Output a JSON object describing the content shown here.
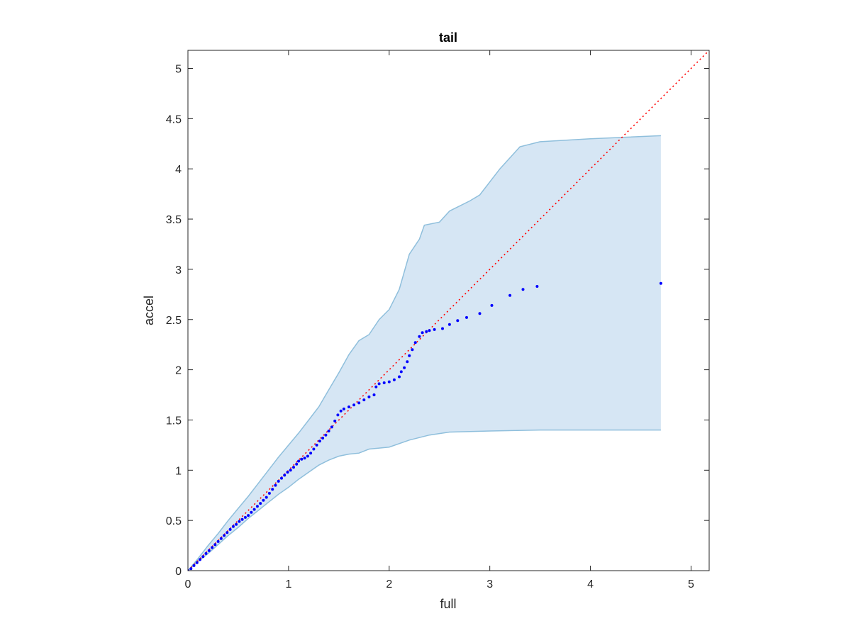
{
  "chart_data": {
    "type": "scatter",
    "title": "tail",
    "xlabel": "full",
    "ylabel": "accel",
    "xlim": [
      0,
      5.18
    ],
    "ylim": [
      0,
      5.18
    ],
    "xticks": [
      "0",
      "1",
      "2",
      "3",
      "4",
      "5"
    ],
    "yticks": [
      "0",
      "0.5",
      "1",
      "1.5",
      "2",
      "2.5",
      "3",
      "3.5",
      "4",
      "4.5",
      "5"
    ],
    "grid": false,
    "box": true,
    "reference_line": {
      "style": "dotted",
      "color": "#ff0000",
      "from": [
        0,
        0
      ],
      "to": [
        5.18,
        5.18
      ]
    },
    "band": {
      "fill_color": "#d6e6f4",
      "edge_color": "#8fbfdc",
      "upper": [
        [
          0,
          0
        ],
        [
          0.1,
          0.12
        ],
        [
          0.2,
          0.25
        ],
        [
          0.3,
          0.37
        ],
        [
          0.4,
          0.5
        ],
        [
          0.5,
          0.62
        ],
        [
          0.6,
          0.74
        ],
        [
          0.7,
          0.87
        ],
        [
          0.8,
          1.0
        ],
        [
          0.9,
          1.13
        ],
        [
          1.0,
          1.25
        ],
        [
          1.1,
          1.37
        ],
        [
          1.2,
          1.5
        ],
        [
          1.3,
          1.63
        ],
        [
          1.4,
          1.8
        ],
        [
          1.5,
          1.97
        ],
        [
          1.6,
          2.15
        ],
        [
          1.7,
          2.29
        ],
        [
          1.8,
          2.35
        ],
        [
          1.9,
          2.5
        ],
        [
          2.0,
          2.6
        ],
        [
          2.1,
          2.8
        ],
        [
          2.2,
          3.15
        ],
        [
          2.3,
          3.3
        ],
        [
          2.35,
          3.44
        ],
        [
          2.5,
          3.47
        ],
        [
          2.6,
          3.58
        ],
        [
          2.8,
          3.68
        ],
        [
          2.9,
          3.74
        ],
        [
          3.1,
          4.0
        ],
        [
          3.3,
          4.22
        ],
        [
          3.5,
          4.27
        ],
        [
          4.0,
          4.3
        ],
        [
          4.7,
          4.33
        ]
      ],
      "lower": [
        [
          0,
          0
        ],
        [
          0.1,
          0.09
        ],
        [
          0.2,
          0.17
        ],
        [
          0.3,
          0.26
        ],
        [
          0.4,
          0.35
        ],
        [
          0.5,
          0.43
        ],
        [
          0.6,
          0.52
        ],
        [
          0.7,
          0.6
        ],
        [
          0.8,
          0.68
        ],
        [
          0.9,
          0.76
        ],
        [
          1.0,
          0.83
        ],
        [
          1.1,
          0.91
        ],
        [
          1.2,
          0.98
        ],
        [
          1.3,
          1.05
        ],
        [
          1.4,
          1.1
        ],
        [
          1.5,
          1.14
        ],
        [
          1.6,
          1.16
        ],
        [
          1.7,
          1.17
        ],
        [
          1.8,
          1.21
        ],
        [
          1.9,
          1.22
        ],
        [
          2.0,
          1.23
        ],
        [
          2.2,
          1.3
        ],
        [
          2.4,
          1.35
        ],
        [
          2.6,
          1.38
        ],
        [
          3.0,
          1.39
        ],
        [
          3.5,
          1.4
        ],
        [
          4.0,
          1.4
        ],
        [
          4.7,
          1.4
        ]
      ]
    },
    "series": [
      {
        "color": "#0000ff",
        "points": [
          [
            0,
            0
          ],
          [
            0.03,
            0.02
          ],
          [
            0.06,
            0.05
          ],
          [
            0.09,
            0.08
          ],
          [
            0.12,
            0.11
          ],
          [
            0.15,
            0.14
          ],
          [
            0.18,
            0.17
          ],
          [
            0.21,
            0.2
          ],
          [
            0.24,
            0.23
          ],
          [
            0.27,
            0.26
          ],
          [
            0.3,
            0.29
          ],
          [
            0.33,
            0.32
          ],
          [
            0.36,
            0.35
          ],
          [
            0.39,
            0.38
          ],
          [
            0.42,
            0.41
          ],
          [
            0.45,
            0.44
          ],
          [
            0.48,
            0.46
          ],
          [
            0.51,
            0.49
          ],
          [
            0.54,
            0.51
          ],
          [
            0.57,
            0.53
          ],
          [
            0.6,
            0.55
          ],
          [
            0.63,
            0.58
          ],
          [
            0.66,
            0.61
          ],
          [
            0.69,
            0.64
          ],
          [
            0.72,
            0.67
          ],
          [
            0.75,
            0.7
          ],
          [
            0.78,
            0.73
          ],
          [
            0.81,
            0.77
          ],
          [
            0.84,
            0.81
          ],
          [
            0.87,
            0.85
          ],
          [
            0.9,
            0.89
          ],
          [
            0.93,
            0.92
          ],
          [
            0.96,
            0.95
          ],
          [
            0.99,
            0.98
          ],
          [
            1.02,
            1.0
          ],
          [
            1.05,
            1.03
          ],
          [
            1.08,
            1.06
          ],
          [
            1.1,
            1.09
          ],
          [
            1.13,
            1.11
          ],
          [
            1.16,
            1.12
          ],
          [
            1.19,
            1.14
          ],
          [
            1.22,
            1.17
          ],
          [
            1.25,
            1.21
          ],
          [
            1.28,
            1.25
          ],
          [
            1.31,
            1.29
          ],
          [
            1.34,
            1.32
          ],
          [
            1.37,
            1.35
          ],
          [
            1.4,
            1.39
          ],
          [
            1.43,
            1.43
          ],
          [
            1.46,
            1.49
          ],
          [
            1.49,
            1.55
          ],
          [
            1.52,
            1.59
          ],
          [
            1.55,
            1.61
          ],
          [
            1.6,
            1.63
          ],
          [
            1.65,
            1.65
          ],
          [
            1.7,
            1.67
          ],
          [
            1.75,
            1.7
          ],
          [
            1.8,
            1.73
          ],
          [
            1.85,
            1.75
          ],
          [
            1.87,
            1.83
          ],
          [
            1.9,
            1.86
          ],
          [
            1.95,
            1.87
          ],
          [
            2.0,
            1.88
          ],
          [
            2.05,
            1.9
          ],
          [
            2.1,
            1.93
          ],
          [
            2.12,
            1.98
          ],
          [
            2.15,
            2.02
          ],
          [
            2.18,
            2.08
          ],
          [
            2.2,
            2.14
          ],
          [
            2.23,
            2.2
          ],
          [
            2.26,
            2.27
          ],
          [
            2.3,
            2.33
          ],
          [
            2.33,
            2.37
          ],
          [
            2.37,
            2.38
          ],
          [
            2.4,
            2.39
          ],
          [
            2.45,
            2.4
          ],
          [
            2.53,
            2.41
          ],
          [
            2.6,
            2.45
          ],
          [
            2.68,
            2.49
          ],
          [
            2.77,
            2.52
          ],
          [
            2.9,
            2.56
          ],
          [
            3.02,
            2.64
          ],
          [
            3.2,
            2.74
          ],
          [
            3.33,
            2.8
          ],
          [
            3.47,
            2.83
          ],
          [
            4.7,
            2.86
          ]
        ]
      }
    ]
  }
}
